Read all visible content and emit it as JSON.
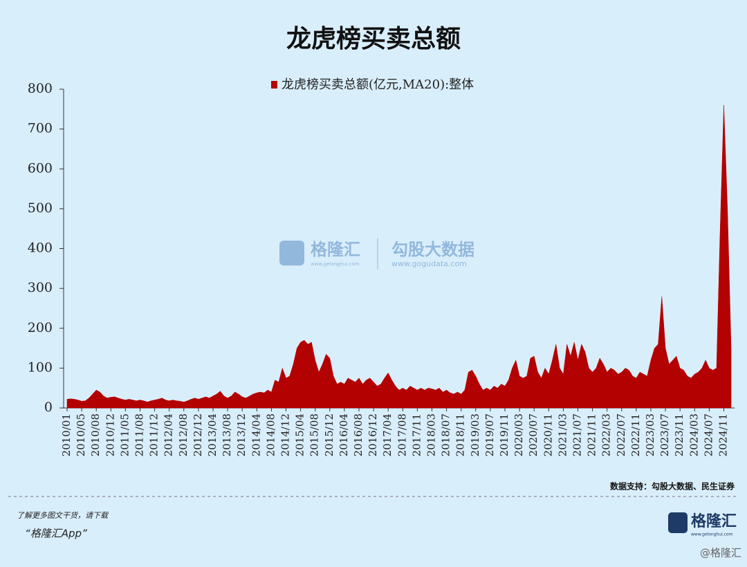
{
  "chart_data": {
    "type": "area",
    "title": "龙虎榜买卖总额",
    "series": [
      {
        "name": "龙虎榜买卖总额(亿元,MA20):整体",
        "color": "#b30000",
        "values": [
          22,
          23,
          22,
          20,
          17,
          18,
          25,
          35,
          45,
          40,
          30,
          25,
          27,
          28,
          25,
          22,
          20,
          22,
          20,
          18,
          20,
          18,
          15,
          18,
          20,
          22,
          25,
          20,
          18,
          20,
          18,
          17,
          15,
          18,
          22,
          25,
          22,
          25,
          28,
          25,
          30,
          35,
          42,
          30,
          25,
          30,
          40,
          35,
          28,
          25,
          30,
          35,
          38,
          40,
          38,
          45,
          40,
          70,
          65,
          100,
          75,
          80,
          110,
          150,
          165,
          170,
          160,
          165,
          120,
          90,
          110,
          135,
          125,
          80,
          60,
          65,
          60,
          75,
          70,
          65,
          75,
          60,
          70,
          75,
          65,
          55,
          60,
          75,
          88,
          70,
          55,
          45,
          50,
          45,
          55,
          50,
          45,
          50,
          45,
          50,
          48,
          45,
          50,
          40,
          45,
          38,
          35,
          40,
          35,
          45,
          90,
          95,
          80,
          60,
          45,
          50,
          45,
          55,
          50,
          60,
          55,
          70,
          100,
          120,
          80,
          75,
          80,
          125,
          130,
          90,
          75,
          100,
          85,
          120,
          160,
          100,
          85,
          160,
          130,
          165,
          120,
          160,
          140,
          100,
          90,
          100,
          125,
          110,
          90,
          100,
          95,
          85,
          90,
          100,
          95,
          80,
          75,
          90,
          85,
          80,
          120,
          150,
          160,
          280,
          150,
          110,
          120,
          130,
          100,
          95,
          80,
          75,
          85,
          90,
          100,
          120,
          100,
          95,
          100,
          450,
          760,
          500,
          150
        ]
      }
    ],
    "categories": [
      "2010/01",
      null,
      null,
      null,
      "2010/05",
      null,
      null,
      null,
      "2010/08",
      null,
      null,
      null,
      "2010/12",
      null,
      null,
      null,
      "2011/05",
      null,
      null,
      null,
      "2011/08",
      null,
      null,
      null,
      "2011/12",
      null,
      null,
      null,
      "2012/04",
      null,
      null,
      null,
      "2012/08",
      null,
      null,
      null,
      "2012/12",
      null,
      null,
      null,
      "2013/04",
      null,
      null,
      null,
      "2013/08",
      null,
      null,
      null,
      "2013/12",
      null,
      null,
      null,
      "2014/04",
      null,
      null,
      null,
      "2014/08",
      null,
      null,
      null,
      "2014/12",
      null,
      null,
      null,
      "2015/04",
      null,
      null,
      null,
      "2015/08",
      null,
      null,
      null,
      "2015/12",
      null,
      null,
      null,
      "2016/04",
      null,
      null,
      null,
      "2016/08",
      null,
      null,
      null,
      "2016/12",
      null,
      null,
      null,
      "2017/04",
      null,
      null,
      null,
      "2017/08",
      null,
      null,
      null,
      "2017/11",
      null,
      null,
      null,
      "2018/03",
      null,
      null,
      null,
      "2018/07",
      null,
      null,
      null,
      "2018/11",
      null,
      null,
      null,
      "2019/03",
      null,
      null,
      null,
      "2019/07",
      null,
      null,
      null,
      "2019/11",
      null,
      null,
      null,
      "2020/03",
      null,
      null,
      null,
      "2020/07",
      null,
      null,
      null,
      "2020/11",
      null,
      null,
      null,
      "2021/03",
      null,
      null,
      null,
      "2021/07",
      null,
      null,
      null,
      "2021/11",
      null,
      null,
      null,
      "2022/03",
      null,
      null,
      null,
      "2022/07",
      null,
      null,
      null,
      "2022/11",
      null,
      null,
      null,
      "2023/03",
      null,
      null,
      null,
      "2023/07",
      null,
      null,
      null,
      "2023/11",
      null,
      null,
      null,
      "2024/03",
      null,
      null,
      null,
      "2024/07",
      null,
      null,
      null,
      "2024/11",
      null,
      null
    ],
    "ylim": [
      0,
      800
    ],
    "yticks": [
      0,
      100,
      200,
      300,
      400,
      500,
      600,
      700,
      800
    ]
  },
  "source": "数据支持：勾股大数据、民生证券",
  "watermark": {
    "brand": "格隆汇",
    "brand_url": "www.gelonghui.com",
    "partner": "勾股大数据",
    "partner_url": "www.gogudata.com"
  },
  "footer": {
    "line1": "了解更多图文干货，请下载",
    "line2": "“格隆汇App”",
    "logo": "格隆汇",
    "logo_url": "www.gelonghui.com",
    "corner": "@格隆汇"
  }
}
